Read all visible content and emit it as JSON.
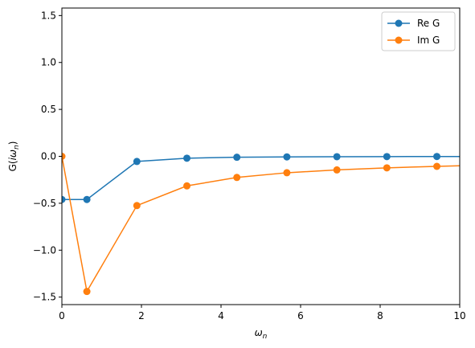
{
  "chart_data": {
    "type": "line",
    "title": "",
    "xlabel": "ω_n",
    "ylabel": "G(iω_n)",
    "xlim": [
      0,
      10
    ],
    "ylim": [
      -1.58,
      1.58
    ],
    "xticks": [
      0,
      2,
      4,
      6,
      8,
      10
    ],
    "xtick_labels": [
      "0",
      "2",
      "4",
      "6",
      "8",
      "10"
    ],
    "yticks": [
      -1.5,
      -1.0,
      -0.5,
      0.0,
      0.5,
      1.0,
      1.5
    ],
    "ytick_labels": [
      "−1.5",
      "−1.0",
      "−0.5",
      "0.0",
      "0.5",
      "1.0",
      "1.5"
    ],
    "grid": false,
    "legend_position": "top-right",
    "series": [
      {
        "name": "Re G",
        "color": "#1f77b4",
        "marker": "circle",
        "x": [
          0.0,
          0.628,
          1.885,
          3.142,
          4.398,
          5.655,
          6.912,
          8.168,
          9.425,
          10.681
        ],
        "y": [
          -0.46,
          -0.46,
          -0.055,
          -0.02,
          -0.01,
          -0.006,
          -0.004,
          -0.003,
          -0.002,
          -0.002
        ]
      },
      {
        "name": "Im G",
        "color": "#ff7f0e",
        "marker": "circle",
        "x": [
          0.0,
          0.628,
          1.885,
          3.142,
          4.398,
          5.655,
          6.912,
          8.168,
          9.425,
          10.681
        ],
        "y": [
          0.0,
          -1.44,
          -0.525,
          -0.315,
          -0.225,
          -0.175,
          -0.145,
          -0.123,
          -0.107,
          -0.094
        ]
      }
    ]
  }
}
